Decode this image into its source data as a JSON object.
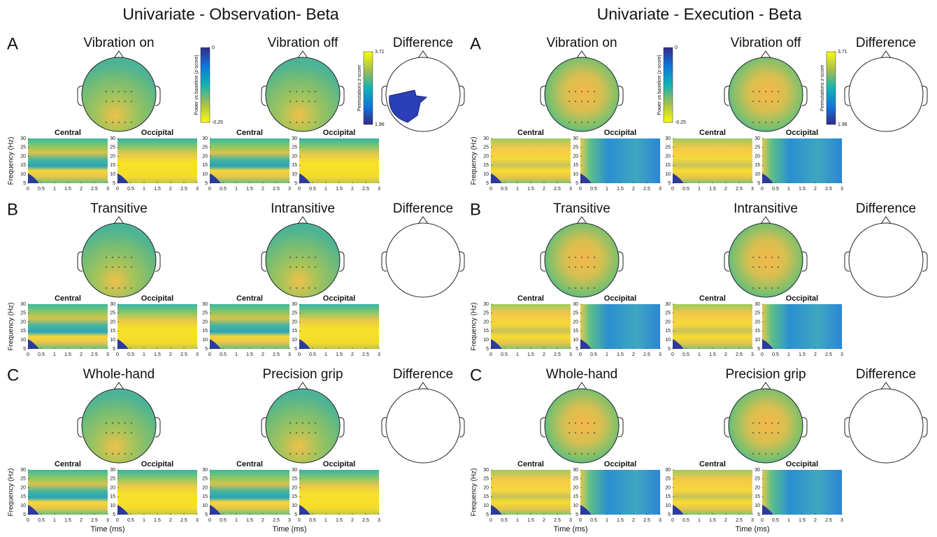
{
  "chart_data": {
    "type": "heatmap",
    "panels": [
      {
        "title": "Univariate - Observation- Beta",
        "rows": [
          {
            "letter": "A",
            "conditions": [
              "Vibration on",
              "Vibration off"
            ],
            "difference": "Difference"
          },
          {
            "letter": "B",
            "conditions": [
              "Transitive",
              "Intransitive"
            ],
            "difference": "Difference"
          },
          {
            "letter": "C",
            "conditions": [
              "Whole-hand",
              "Precision grip"
            ],
            "difference": "Difference"
          }
        ]
      },
      {
        "title": "Univariate - Execution - Beta",
        "rows": [
          {
            "letter": "A",
            "conditions": [
              "Vibration on",
              "Vibration off"
            ],
            "difference": "Difference"
          },
          {
            "letter": "B",
            "conditions": [
              "Transitive",
              "Intransitive"
            ],
            "difference": "Difference"
          },
          {
            "letter": "C",
            "conditions": [
              "Whole-hand",
              "Precision grip"
            ],
            "difference": "Difference"
          }
        ]
      }
    ],
    "regions": [
      "Central",
      "Occipital"
    ],
    "ylabel": "Frequency (Hz)",
    "xlabel": "Time (ms)",
    "xlim": [
      0,
      3
    ],
    "xticks": [
      0,
      0.5,
      1,
      1.5,
      2,
      2.5,
      3
    ],
    "ylim": [
      5,
      30
    ],
    "yticks": [
      5,
      10,
      15,
      20,
      25,
      30
    ],
    "power_colorbar": {
      "label": "Power vs baseline (z-score)",
      "lim": [
        -0.25,
        0
      ],
      "ticks": [
        0,
        -0.25
      ]
    },
    "perm_colorbar": {
      "label": "Permutations z-score",
      "lim": [
        1.96,
        3.71
      ],
      "ticks": [
        3.71,
        1.96
      ]
    }
  }
}
